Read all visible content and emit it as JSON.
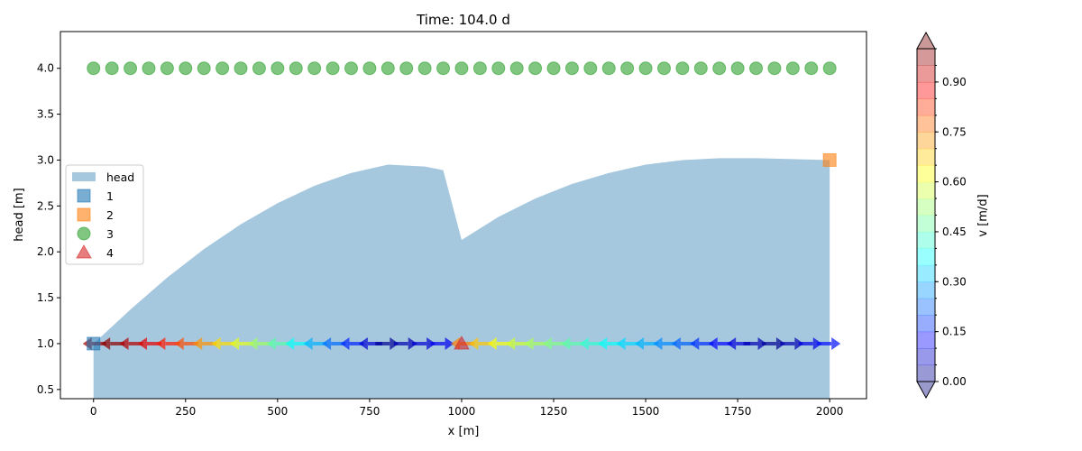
{
  "chart_data": {
    "type": "area",
    "title": "Time: 104.0 d",
    "xlabel": "x [m]",
    "ylabel": "head [m]",
    "xlim": [
      -90,
      2100
    ],
    "ylim": [
      0.4,
      4.4
    ],
    "grid": false,
    "legend_placement": "center-left",
    "xticks": [
      0,
      250,
      500,
      750,
      1000,
      1250,
      1500,
      1750,
      2000
    ],
    "xtick_labels": [
      "0",
      "250",
      "500",
      "750",
      "1000",
      "1250",
      "1500",
      "1750",
      "2000"
    ],
    "yticks": [
      0.5,
      1.0,
      1.5,
      2.0,
      2.5,
      3.0,
      3.5,
      4.0
    ],
    "ytick_labels": [
      "0.5",
      "1.0",
      "1.5",
      "2.0",
      "2.5",
      "3.0",
      "3.5",
      "4.0"
    ],
    "head": {
      "name": "head",
      "color": "#a6c8df",
      "x": [
        0,
        100,
        200,
        300,
        400,
        500,
        600,
        700,
        800,
        900,
        950,
        1000,
        1100,
        1200,
        1300,
        1400,
        1500,
        1600,
        1700,
        1800,
        1900,
        2000
      ],
      "y": [
        1.0,
        1.37,
        1.72,
        2.03,
        2.3,
        2.53,
        2.72,
        2.86,
        2.95,
        2.93,
        2.89,
        2.13,
        2.38,
        2.58,
        2.74,
        2.86,
        2.95,
        3.0,
        3.02,
        3.02,
        3.01,
        3.0
      ]
    },
    "series": [
      {
        "name": "1",
        "marker": "square",
        "color": "#1f77b4",
        "x": [
          0
        ],
        "y": [
          1.0
        ]
      },
      {
        "name": "2",
        "marker": "square",
        "color": "#ff7f0e",
        "x": [
          2000
        ],
        "y": [
          3.0
        ]
      },
      {
        "name": "3",
        "marker": "circle",
        "color": "#2ca02c",
        "x": [
          0,
          50,
          100,
          150,
          200,
          250,
          300,
          350,
          400,
          450,
          500,
          550,
          600,
          650,
          700,
          750,
          800,
          850,
          900,
          950,
          1000,
          1050,
          1100,
          1150,
          1200,
          1250,
          1300,
          1350,
          1400,
          1450,
          1500,
          1550,
          1600,
          1650,
          1700,
          1750,
          1800,
          1850,
          1900,
          1950,
          2000
        ],
        "y": [
          4,
          4,
          4,
          4,
          4,
          4,
          4,
          4,
          4,
          4,
          4,
          4,
          4,
          4,
          4,
          4,
          4,
          4,
          4,
          4,
          4,
          4,
          4,
          4,
          4,
          4,
          4,
          4,
          4,
          4,
          4,
          4,
          4,
          4,
          4,
          4,
          4,
          4,
          4,
          4,
          4
        ]
      },
      {
        "name": "4",
        "marker": "triangle",
        "color": "#d62728",
        "x": [
          1000
        ],
        "y": [
          1.0
        ]
      }
    ],
    "velocity": {
      "y": 1.0,
      "x": [
        0,
        50,
        100,
        150,
        200,
        250,
        300,
        350,
        400,
        450,
        500,
        550,
        600,
        650,
        700,
        750,
        800,
        850,
        900,
        950,
        1000,
        1050,
        1100,
        1150,
        1200,
        1250,
        1300,
        1350,
        1400,
        1450,
        1500,
        1550,
        1600,
        1650,
        1700,
        1750,
        1800,
        1850,
        1900,
        1950,
        2000
      ],
      "v": [
        0.97,
        0.99,
        0.95,
        0.9,
        0.85,
        0.8,
        0.73,
        0.66,
        0.6,
        0.53,
        0.46,
        0.38,
        0.3,
        0.23,
        0.16,
        0.08,
        0.02,
        0.05,
        0.08,
        0.11,
        0.75,
        0.68,
        0.62,
        0.58,
        0.54,
        0.5,
        0.46,
        0.42,
        0.38,
        0.34,
        0.3,
        0.26,
        0.22,
        0.17,
        0.13,
        0.09,
        0.05,
        0.02,
        0.05,
        0.1,
        0.14
      ],
      "dir": [
        -1,
        -1,
        -1,
        -1,
        -1,
        -1,
        -1,
        -1,
        -1,
        -1,
        -1,
        -1,
        -1,
        -1,
        -1,
        -1,
        1,
        1,
        1,
        1,
        -1,
        -1,
        -1,
        -1,
        -1,
        -1,
        -1,
        -1,
        -1,
        -1,
        -1,
        -1,
        -1,
        -1,
        -1,
        -1,
        1,
        1,
        1,
        1,
        1
      ]
    },
    "colorbar": {
      "label": "v [m/d]",
      "vmin": 0.0,
      "vmax": 1.0,
      "levels": 20,
      "ticks": [
        0.0,
        0.15,
        0.3,
        0.45,
        0.6,
        0.75,
        0.9
      ],
      "tick_labels": [
        "0.00",
        "0.15",
        "0.30",
        "0.45",
        "0.60",
        "0.75",
        "0.90"
      ]
    }
  }
}
